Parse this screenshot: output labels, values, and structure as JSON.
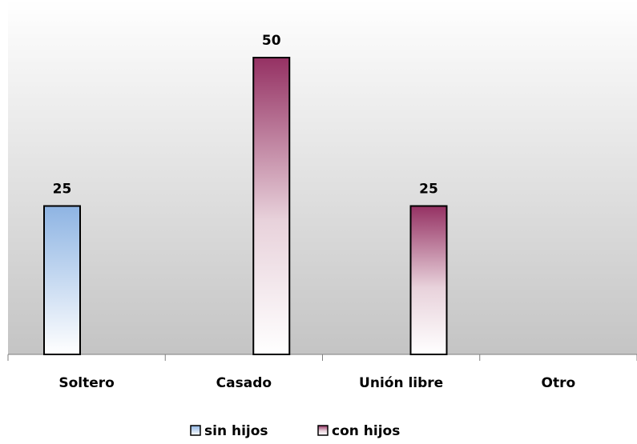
{
  "chart_data": {
    "type": "bar",
    "categories": [
      "Soltero",
      "Casado",
      "Unión libre",
      "Otro"
    ],
    "series": [
      {
        "name": "sin hijos",
        "values": [
          25,
          null,
          null,
          null
        ],
        "color": "#8eb4e3"
      },
      {
        "name": "con hijos",
        "values": [
          null,
          50,
          25,
          null
        ],
        "color": "#953163"
      }
    ],
    "data_labels": [
      "25",
      "50",
      "25"
    ],
    "ylim": [
      0,
      50
    ],
    "grid": false,
    "legend_position": "bottom",
    "background": "gradient white-to-gray",
    "title": "",
    "xlabel": "",
    "ylabel": ""
  }
}
